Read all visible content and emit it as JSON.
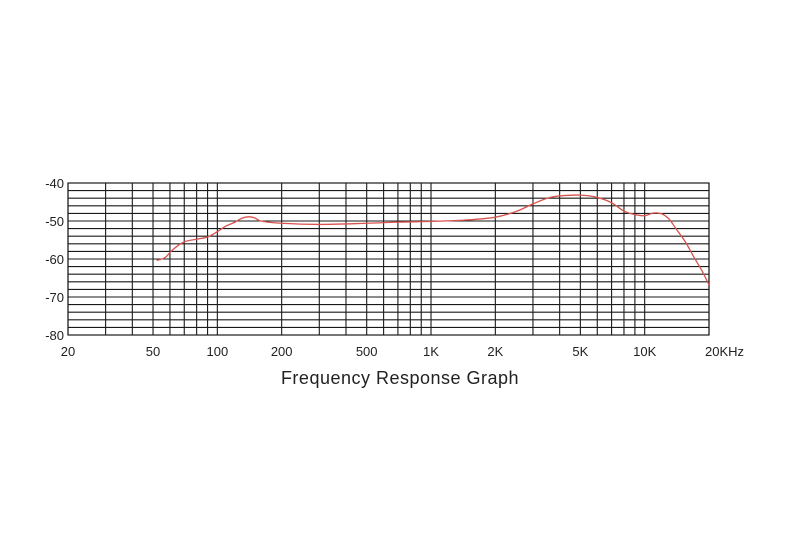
{
  "chart_data": {
    "type": "line",
    "title": "Frequency Response Graph",
    "x_scale": "log",
    "xlim": [
      20,
      20000
    ],
    "ylim": [
      -80,
      -40
    ],
    "grid": true,
    "x_tick_labels": [
      {
        "value": 20,
        "label": "20"
      },
      {
        "value": 50,
        "label": "50"
      },
      {
        "value": 100,
        "label": "100"
      },
      {
        "value": 200,
        "label": "200"
      },
      {
        "value": 500,
        "label": "500"
      },
      {
        "value": 1000,
        "label": "1K"
      },
      {
        "value": 2000,
        "label": "2K"
      },
      {
        "value": 5000,
        "label": "5K"
      },
      {
        "value": 10000,
        "label": "10K"
      },
      {
        "value": 20000,
        "label": "20KHz"
      }
    ],
    "y_tick_labels": [
      {
        "value": -40,
        "label": "-40"
      },
      {
        "value": -50,
        "label": "-50"
      },
      {
        "value": -60,
        "label": "-60"
      },
      {
        "value": -70,
        "label": "-70"
      },
      {
        "value": -80,
        "label": "-80"
      }
    ],
    "x_gridlines": [
      20,
      30,
      40,
      50,
      60,
      70,
      80,
      90,
      100,
      200,
      300,
      400,
      500,
      600,
      700,
      800,
      900,
      1000,
      2000,
      3000,
      4000,
      5000,
      6000,
      7000,
      8000,
      9000,
      10000,
      20000
    ],
    "y_gridlines": [
      -40,
      -42,
      -44,
      -46,
      -48,
      -50,
      -52,
      -54,
      -56,
      -58,
      -60,
      -62,
      -64,
      -66,
      -68,
      -70,
      -72,
      -74,
      -76,
      -78,
      -80
    ],
    "series": [
      {
        "color": "#d9534f",
        "points": [
          [
            52,
            -60.4
          ],
          [
            57,
            -59.6
          ],
          [
            62,
            -57.5
          ],
          [
            70,
            -55.5
          ],
          [
            80,
            -54.8
          ],
          [
            90,
            -54.2
          ],
          [
            100,
            -52.8
          ],
          [
            110,
            -51.3
          ],
          [
            120,
            -50.4
          ],
          [
            130,
            -49.3
          ],
          [
            140,
            -48.9
          ],
          [
            150,
            -49.2
          ],
          [
            160,
            -50.0
          ],
          [
            200,
            -50.6
          ],
          [
            300,
            -50.9
          ],
          [
            500,
            -50.6
          ],
          [
            700,
            -50.3
          ],
          [
            1000,
            -50.1
          ],
          [
            1500,
            -49.7
          ],
          [
            2000,
            -49.0
          ],
          [
            2500,
            -47.5
          ],
          [
            3000,
            -45.5
          ],
          [
            3500,
            -44.0
          ],
          [
            4000,
            -43.4
          ],
          [
            5000,
            -43.2
          ],
          [
            6000,
            -43.8
          ],
          [
            7000,
            -45.2
          ],
          [
            8000,
            -47.4
          ],
          [
            9000,
            -48.3
          ],
          [
            10000,
            -48.6
          ],
          [
            11000,
            -47.9
          ],
          [
            12000,
            -48.1
          ],
          [
            13000,
            -49.5
          ],
          [
            14000,
            -52.0
          ],
          [
            15500,
            -55.5
          ],
          [
            17000,
            -59.5
          ],
          [
            18500,
            -63.0
          ],
          [
            20000,
            -66.8
          ]
        ]
      }
    ]
  }
}
